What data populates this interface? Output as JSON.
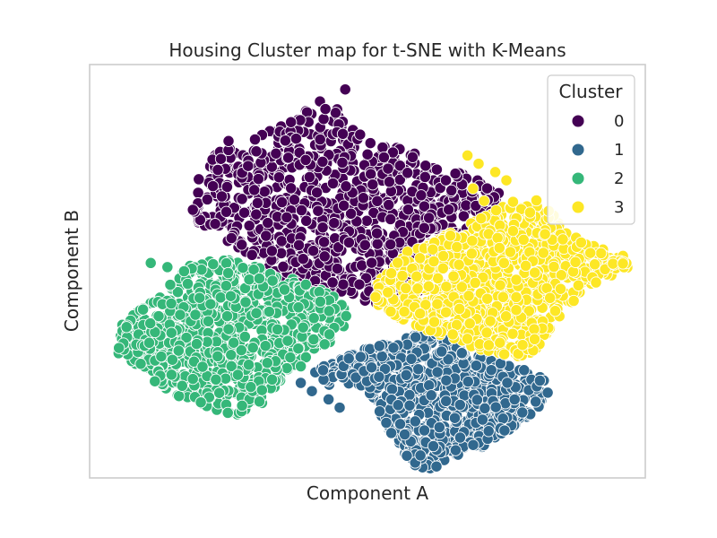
{
  "chart_data": {
    "type": "scatter",
    "title": "Housing Cluster map for t-SNE with K-Means",
    "xlabel": "Component A",
    "ylabel": "Component B",
    "xlim": [
      -100,
      100
    ],
    "ylim": [
      -100,
      100
    ],
    "grid": false,
    "ticks_visible": false,
    "legend": {
      "title": "Cluster",
      "position": "top-right"
    },
    "marker_edge_color": "#ffffff",
    "series": [
      {
        "name": "0",
        "color": "#440154",
        "region": [
          [
            -65,
            34
          ],
          [
            -58,
            52
          ],
          [
            -52,
            60
          ],
          [
            -44,
            58
          ],
          [
            -40,
            65
          ],
          [
            -30,
            72
          ],
          [
            -22,
            78
          ],
          [
            -15,
            84
          ],
          [
            -8,
            76
          ],
          [
            0,
            66
          ],
          [
            8,
            62
          ],
          [
            15,
            58
          ],
          [
            22,
            55
          ],
          [
            28,
            50
          ],
          [
            36,
            48
          ],
          [
            43,
            42
          ],
          [
            52,
            38
          ],
          [
            47,
            30
          ],
          [
            40,
            18
          ],
          [
            32,
            10
          ],
          [
            26,
            4
          ],
          [
            20,
            -8
          ],
          [
            16,
            -14
          ],
          [
            10,
            -18
          ],
          [
            2,
            -16
          ],
          [
            -8,
            -12
          ],
          [
            -20,
            -10
          ],
          [
            -32,
            -4
          ],
          [
            -44,
            8
          ],
          [
            -54,
            18
          ],
          [
            -62,
            24
          ]
        ],
        "outliers": [
          [
            -50,
            63
          ],
          [
            -40,
            58
          ],
          [
            -8,
            88
          ]
        ]
      },
      {
        "name": "1",
        "color": "#31688e",
        "region": [
          [
            12,
            -34
          ],
          [
            20,
            -28
          ],
          [
            28,
            -32
          ],
          [
            40,
            -40
          ],
          [
            52,
            -46
          ],
          [
            62,
            -50
          ],
          [
            66,
            -56
          ],
          [
            62,
            -66
          ],
          [
            56,
            -72
          ],
          [
            48,
            -80
          ],
          [
            40,
            -86
          ],
          [
            30,
            -90
          ],
          [
            24,
            -96
          ],
          [
            18,
            -96
          ],
          [
            12,
            -86
          ],
          [
            6,
            -74
          ],
          [
            2,
            -62
          ],
          [
            -4,
            -54
          ],
          [
            -16,
            -56
          ],
          [
            -20,
            -48
          ],
          [
            -10,
            -42
          ],
          [
            2,
            -36
          ]
        ],
        "outliers": [
          [
            -14,
            -62
          ],
          [
            -10,
            -66
          ],
          [
            -24,
            -54
          ],
          [
            -20,
            -58
          ]
        ]
      },
      {
        "name": "2",
        "color": "#35b779",
        "region": [
          [
            -74,
            -12
          ],
          [
            -84,
            -20
          ],
          [
            -92,
            -30
          ],
          [
            -90,
            -40
          ],
          [
            -82,
            -46
          ],
          [
            -76,
            -54
          ],
          [
            -66,
            -62
          ],
          [
            -56,
            -68
          ],
          [
            -46,
            -70
          ],
          [
            -38,
            -64
          ],
          [
            -32,
            -54
          ],
          [
            -26,
            -46
          ],
          [
            -18,
            -40
          ],
          [
            -10,
            -32
          ],
          [
            -6,
            -24
          ],
          [
            -8,
            -16
          ],
          [
            -14,
            -10
          ],
          [
            -26,
            -4
          ],
          [
            -40,
            2
          ],
          [
            -52,
            6
          ],
          [
            -62,
            4
          ],
          [
            -70,
            -2
          ]
        ],
        "outliers": [
          [
            -78,
            4
          ],
          [
            -72,
            2
          ],
          [
            -66,
            0
          ],
          [
            -24,
            -46
          ]
        ]
      },
      {
        "name": "3",
        "color": "#fde725",
        "region": [
          [
            2,
            -12
          ],
          [
            6,
            2
          ],
          [
            14,
            10
          ],
          [
            24,
            14
          ],
          [
            34,
            22
          ],
          [
            44,
            30
          ],
          [
            54,
            36
          ],
          [
            62,
            34
          ],
          [
            68,
            26
          ],
          [
            74,
            18
          ],
          [
            82,
            12
          ],
          [
            92,
            8
          ],
          [
            94,
            2
          ],
          [
            86,
            -4
          ],
          [
            78,
            -10
          ],
          [
            68,
            -24
          ],
          [
            62,
            -36
          ],
          [
            56,
            -42
          ],
          [
            46,
            -40
          ],
          [
            36,
            -36
          ],
          [
            24,
            -30
          ],
          [
            14,
            -24
          ],
          [
            4,
            -18
          ]
        ],
        "outliers": [
          [
            36,
            56
          ],
          [
            40,
            52
          ],
          [
            46,
            48
          ],
          [
            50,
            44
          ],
          [
            38,
            40
          ],
          [
            42,
            34
          ]
        ]
      }
    ]
  }
}
